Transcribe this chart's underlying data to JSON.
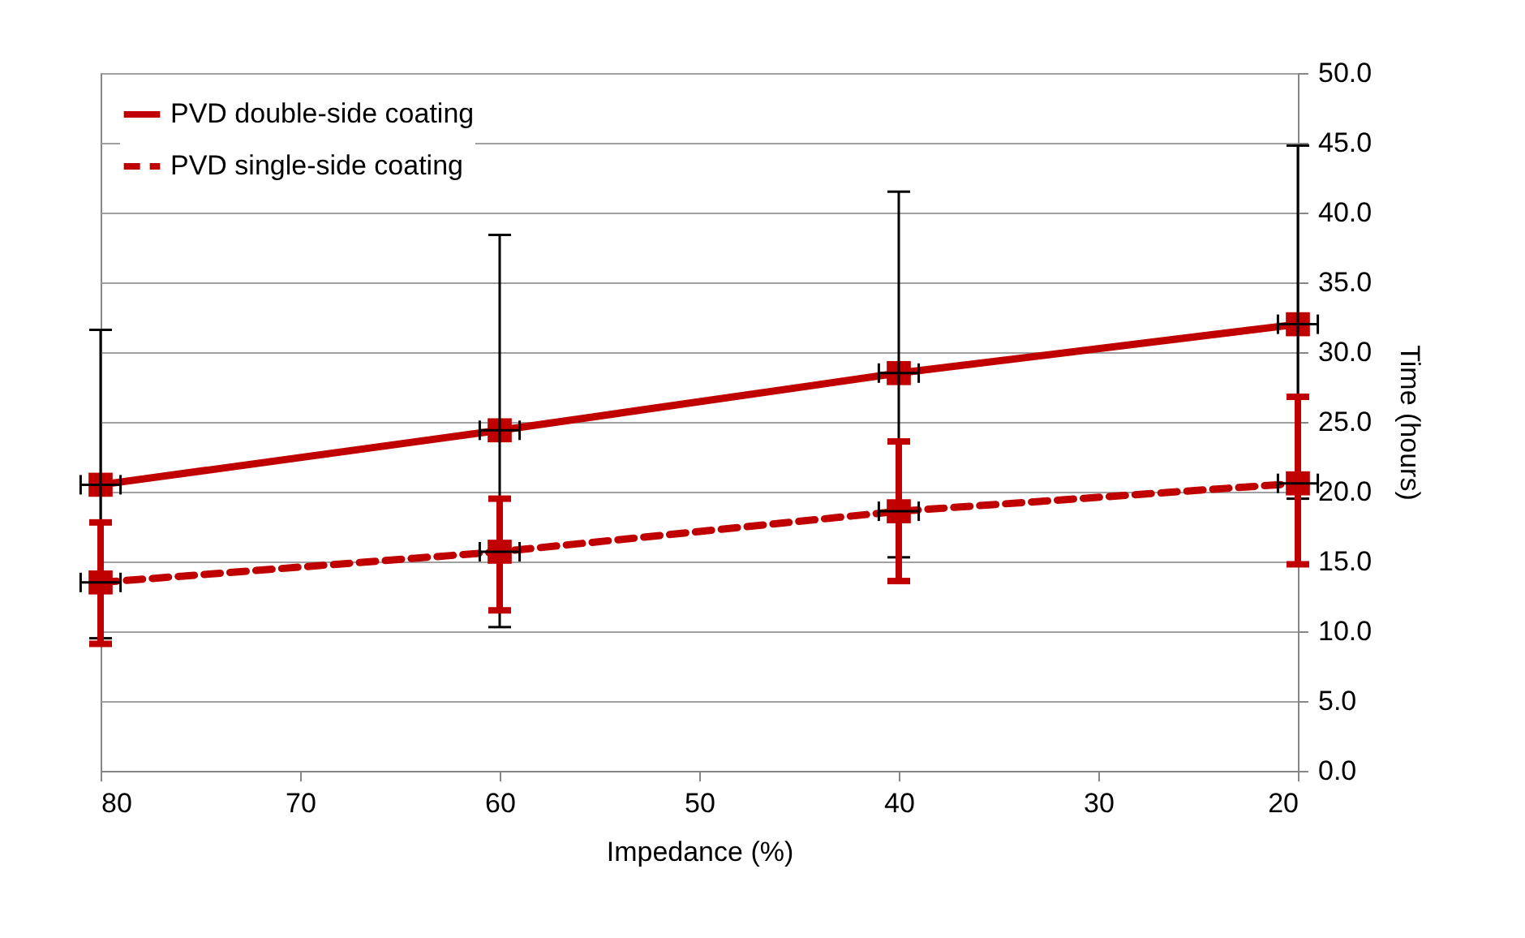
{
  "chart_data": {
    "type": "line",
    "xlabel": "Impedance (%)",
    "ylabel": "Time (hours)",
    "x": [
      80,
      60,
      40,
      20
    ],
    "series": [
      {
        "name": "PVD double-side coating",
        "color": "#c00000",
        "line_style": "solid",
        "values": [
          20.5,
          24.4,
          28.5,
          32.0
        ],
        "errors": [
          [
            9.5,
            31.6
          ],
          [
            10.3,
            38.4
          ],
          [
            15.3,
            41.5
          ],
          [
            19.5,
            44.8
          ]
        ],
        "xerrors": [
          1,
          1,
          1,
          1
        ]
      },
      {
        "name": "PVD single-side coating",
        "color": "#c00000",
        "line_style": "dashed",
        "values": [
          13.5,
          15.7,
          18.6,
          20.6
        ],
        "errors": [
          [
            9.1,
            17.8
          ],
          [
            11.5,
            19.5
          ],
          [
            13.6,
            23.6
          ],
          [
            14.8,
            26.8
          ]
        ],
        "xerrors": [
          1,
          1,
          1,
          1
        ]
      }
    ],
    "xlim": [
      80,
      20
    ],
    "xticks": [
      80,
      70,
      60,
      50,
      40,
      30,
      20
    ],
    "ylim": [
      0,
      50
    ],
    "yticks": [
      {
        "value": 0,
        "label": "0.0"
      },
      {
        "value": 5,
        "label": "5.0"
      },
      {
        "value": 10,
        "label": "10.0"
      },
      {
        "value": 15,
        "label": "15.0"
      },
      {
        "value": 20,
        "label": "20.0"
      },
      {
        "value": 25,
        "label": "25.0"
      },
      {
        "value": 30,
        "label": "30.0"
      },
      {
        "value": 35,
        "label": "35.0"
      },
      {
        "value": 40,
        "label": "40.0"
      },
      {
        "value": 45,
        "label": "45.0"
      },
      {
        "value": 50,
        "label": "50.0"
      }
    ],
    "grid": "y",
    "legend": "top left",
    "marker": "square"
  }
}
